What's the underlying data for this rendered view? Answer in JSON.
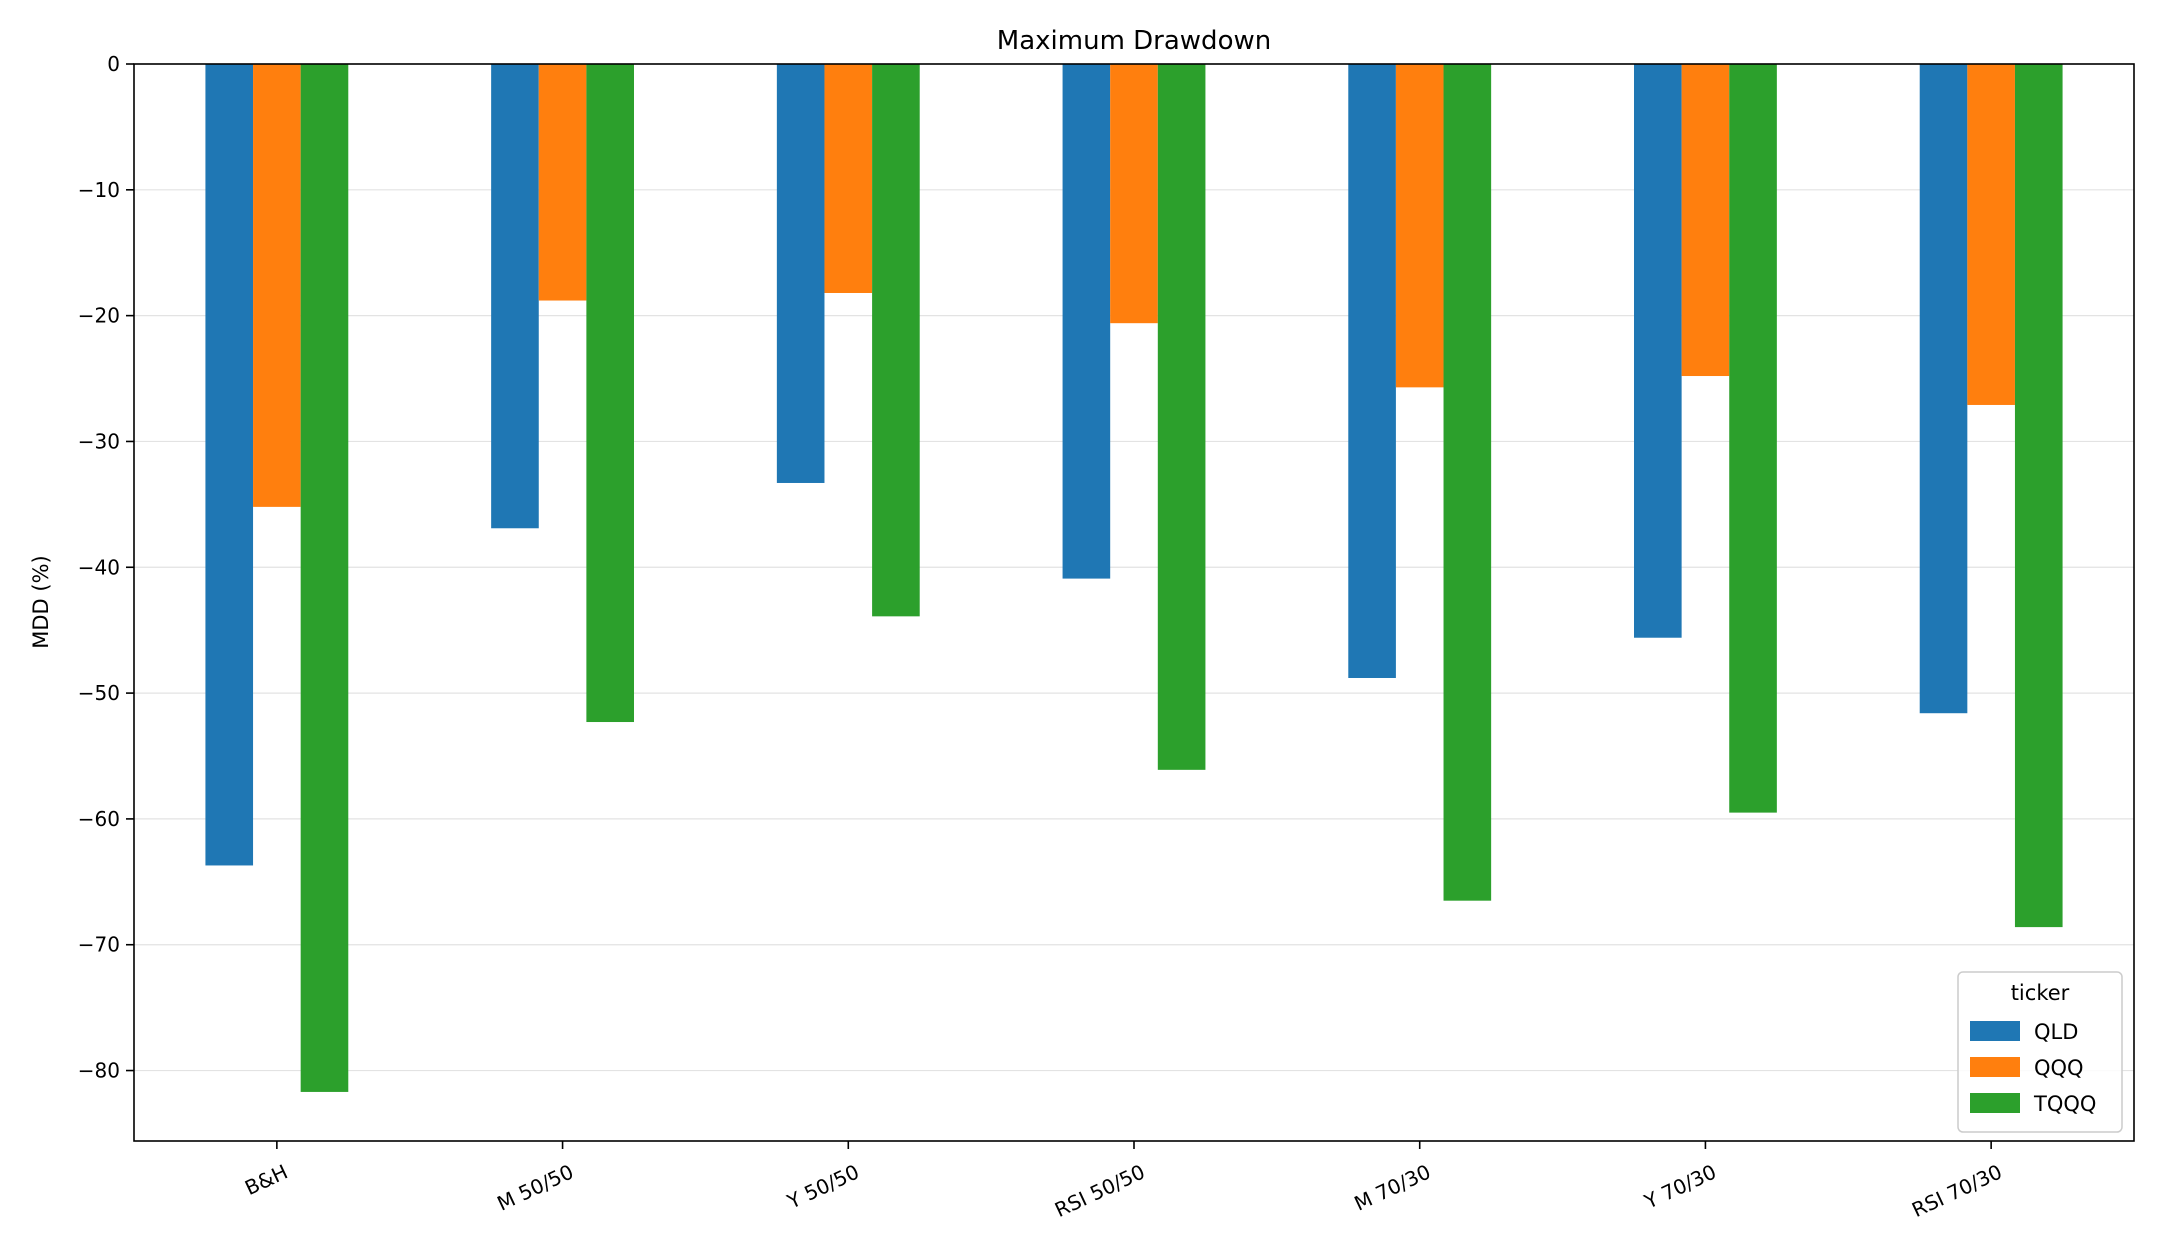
{
  "chart_data": {
    "type": "bar",
    "title": "Maximum Drawdown",
    "xlabel": "",
    "ylabel": "MDD (%)",
    "categories": [
      "B&H",
      "M 50/50",
      "Y 50/50",
      "RSI 50/50",
      "M 70/30",
      "Y 70/30",
      "RSI 70/30"
    ],
    "series": [
      {
        "name": "QLD",
        "color": "#1f77b4",
        "values": [
          -63.7,
          -36.9,
          -33.3,
          -40.9,
          -48.8,
          -45.6,
          -51.6
        ]
      },
      {
        "name": "QQQ",
        "color": "#ff7f0e",
        "values": [
          -35.2,
          -18.8,
          -18.2,
          -20.6,
          -25.7,
          -24.8,
          -27.1
        ]
      },
      {
        "name": "TQQQ",
        "color": "#2ca02c",
        "values": [
          -81.7,
          -52.3,
          -43.9,
          -56.1,
          -66.5,
          -59.5,
          -68.6
        ]
      }
    ],
    "ylim": [
      -85.6,
      0
    ],
    "yticks": [
      0,
      -10,
      -20,
      -30,
      -40,
      -50,
      -60,
      -70,
      -80
    ],
    "grid": "horizontal",
    "legend": {
      "title": "ticker",
      "position": "lower-right"
    }
  }
}
